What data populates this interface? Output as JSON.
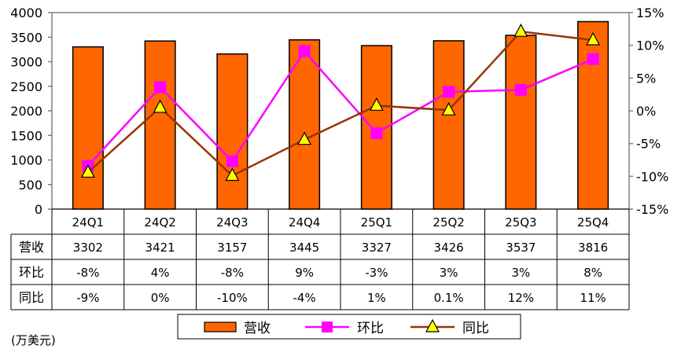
{
  "chart_data": {
    "type": "bar",
    "categories": [
      "24Q1",
      "24Q2",
      "24Q3",
      "24Q4",
      "25Q1",
      "25Q2",
      "25Q3",
      "25Q4"
    ],
    "series": [
      {
        "name": "营收",
        "type": "bar",
        "axis": "left",
        "color": "#FF6600",
        "values": [
          3302,
          3421,
          3157,
          3445,
          3327,
          3426,
          3537,
          3816
        ]
      },
      {
        "name": "环比",
        "type": "line",
        "axis": "right",
        "color": "#FF00FF",
        "values": [
          -8.4,
          3.6,
          -7.7,
          9.1,
          -3.4,
          2.9,
          3.2,
          7.9
        ]
      },
      {
        "name": "同比",
        "type": "line",
        "axis": "right",
        "color": "#993300",
        "values": [
          -9.4,
          0.5,
          -9.9,
          -4.4,
          0.8,
          0.1,
          12.1,
          10.8
        ]
      }
    ],
    "ylim_left": [
      0,
      4000
    ],
    "yticks_left": [
      "4000",
      "3500",
      "3000",
      "2500",
      "2000",
      "1500",
      "1000",
      "500",
      "0"
    ],
    "ylim_right": [
      -15,
      15
    ],
    "yticks_right": [
      "15%",
      "10%",
      "5%",
      "0%",
      "-5%",
      "-10%",
      "-15%"
    ],
    "table": {
      "rows": [
        {
          "label": "营收",
          "cells": [
            "3302",
            "3421",
            "3157",
            "3445",
            "3327",
            "3426",
            "3537",
            "3816"
          ]
        },
        {
          "label": "环比",
          "cells": [
            "-8%",
            "4%",
            "-8%",
            "9%",
            "-3%",
            "3%",
            "3%",
            "8%"
          ]
        },
        {
          "label": "同比",
          "cells": [
            "-9%",
            "0%",
            "-10%",
            "-4%",
            "1%",
            "0.1%",
            "12%",
            "11%"
          ]
        }
      ]
    },
    "legend": {
      "position": "bottom",
      "items": [
        {
          "label": "营收",
          "type": "bar"
        },
        {
          "label": "环比",
          "type": "line-square"
        },
        {
          "label": "同比",
          "type": "line-triangle"
        }
      ]
    },
    "unit_note": "(万美元)",
    "grid": false
  }
}
